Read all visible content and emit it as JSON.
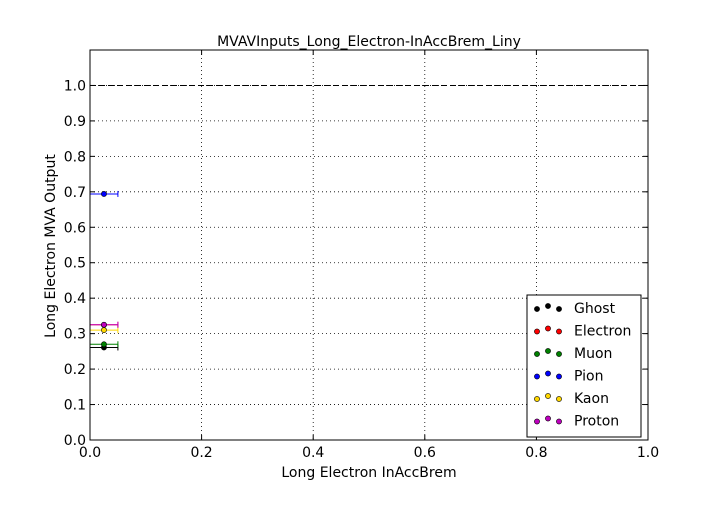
{
  "chart_data": {
    "type": "scatter",
    "title": "MVAVInputs_Long_Electron-InAccBrem_Liny",
    "xlabel": "Long Electron InAccBrem",
    "ylabel": "Long Electron MVA Output",
    "xlim": [
      0.0,
      1.0
    ],
    "ylim": [
      0.0,
      1.1
    ],
    "x_ticks": [
      "0.0",
      "0.2",
      "0.4",
      "0.6",
      "0.8",
      "1.0"
    ],
    "y_ticks": [
      "0.0",
      "0.1",
      "0.2",
      "0.3",
      "0.4",
      "0.5",
      "0.6",
      "0.7",
      "0.8",
      "0.9",
      "1.0"
    ],
    "x_tick_values": [
      0.0,
      0.2,
      0.4,
      0.6,
      0.8,
      1.0
    ],
    "y_tick_values": [
      0.0,
      0.1,
      0.2,
      0.3,
      0.4,
      0.5,
      0.6,
      0.7,
      0.8,
      0.9,
      1.0
    ],
    "grid": true,
    "reference_line": {
      "y": 1.0,
      "style": "dashed"
    },
    "legend_position": "bottom-right",
    "series": [
      {
        "name": "Ghost",
        "color": "#000000",
        "x": [
          0.025
        ],
        "y": [
          0.261
        ],
        "xerr": [
          0.025
        ]
      },
      {
        "name": "Electron",
        "color": "#ff0000",
        "x": [
          0.025
        ],
        "y": [
          0.325
        ],
        "xerr": [
          0.025
        ]
      },
      {
        "name": "Muon",
        "color": "#008000",
        "x": [
          0.025
        ],
        "y": [
          0.27
        ],
        "xerr": [
          0.025
        ]
      },
      {
        "name": "Pion",
        "color": "#0000ff",
        "x": [
          0.025
        ],
        "y": [
          0.694
        ],
        "xerr": [
          0.025
        ]
      },
      {
        "name": "Kaon",
        "color": "#ffd700",
        "x": [
          0.025
        ],
        "y": [
          0.31
        ],
        "xerr": [
          0.025
        ]
      },
      {
        "name": "Proton",
        "color": "#bf00bf",
        "x": [
          0.025
        ],
        "y": [
          0.325
        ],
        "xerr": [
          0.025
        ]
      }
    ]
  }
}
